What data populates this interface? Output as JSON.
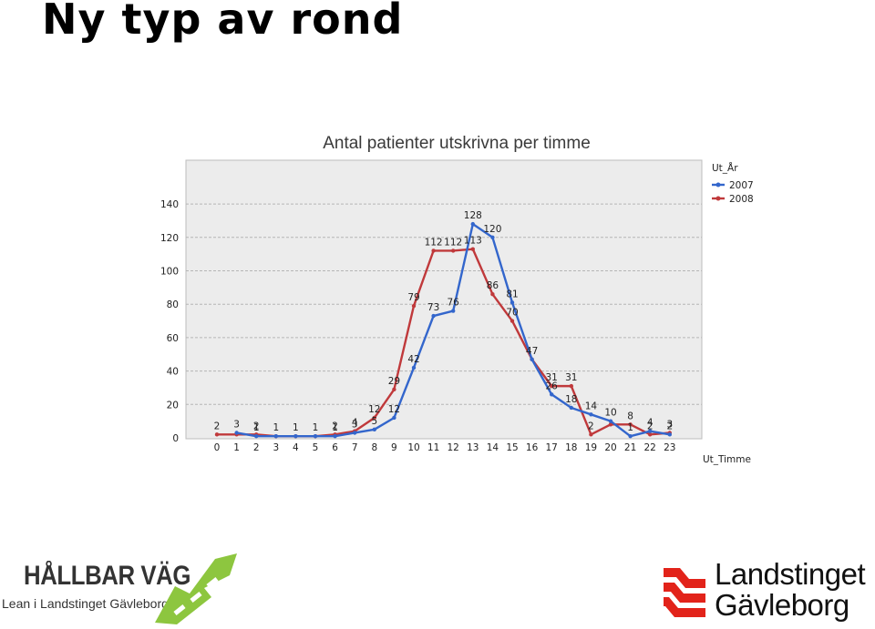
{
  "slide": {
    "title": "Ny typ av rond"
  },
  "chart_data": {
    "type": "line",
    "title": "Antal patienter utskrivna per timme",
    "xlabel": "Ut_Timme",
    "ylabel": "",
    "legend_title": "Ut_År",
    "legend_position": "right",
    "grid": true,
    "ylim": [
      0,
      140
    ],
    "yticks": [
      0,
      20,
      40,
      60,
      80,
      100,
      120,
      140
    ],
    "x": [
      0,
      1,
      2,
      3,
      4,
      5,
      6,
      7,
      8,
      9,
      10,
      11,
      12,
      13,
      14,
      15,
      16,
      17,
      18,
      19,
      20,
      21,
      22,
      23
    ],
    "series": [
      {
        "name": "2007",
        "color": "#3366cc",
        "values": [
          null,
          3,
          1,
          1,
          1,
          1,
          1,
          3,
          5,
          12,
          42,
          73,
          76,
          128,
          120,
          81,
          47,
          26,
          18,
          14,
          10,
          1,
          4,
          2
        ]
      },
      {
        "name": "2008",
        "color": "#c0393b",
        "values": [
          2,
          2,
          2,
          1,
          1,
          1,
          2,
          4,
          12,
          29,
          79,
          112,
          112,
          113,
          86,
          70,
          47,
          31,
          31,
          2,
          8,
          8,
          2,
          3
        ]
      }
    ],
    "data_labels": [
      {
        "x": 0,
        "text": "2",
        "series": "2008"
      },
      {
        "x": 1,
        "text": "3",
        "series": "2007"
      },
      {
        "x": 2,
        "text": "2",
        "series": "2008"
      },
      {
        "x": 2,
        "text": "1",
        "series": "2007"
      },
      {
        "x": 3,
        "text": "1",
        "series": "2007"
      },
      {
        "x": 4,
        "text": "1",
        "series": "2007"
      },
      {
        "x": 5,
        "text": "1",
        "series": "2007"
      },
      {
        "x": 6,
        "text": "2",
        "series": "2008"
      },
      {
        "x": 6,
        "text": "1",
        "series": "2007"
      },
      {
        "x": 7,
        "text": "3",
        "series": "2007"
      },
      {
        "x": 7,
        "text": "4",
        "series": "2008"
      },
      {
        "x": 8,
        "text": "12",
        "series": "2008"
      },
      {
        "x": 8,
        "text": "5",
        "series": "2007"
      },
      {
        "x": 9,
        "text": "29",
        "series": "2008"
      },
      {
        "x": 9,
        "text": "12",
        "series": "2007"
      },
      {
        "x": 10,
        "text": "79",
        "series": "2008"
      },
      {
        "x": 10,
        "text": "42",
        "series": "2007"
      },
      {
        "x": 11,
        "text": "112",
        "series": "2008"
      },
      {
        "x": 11,
        "text": "73",
        "series": "2007"
      },
      {
        "x": 12,
        "text": "112",
        "series": "2008"
      },
      {
        "x": 12,
        "text": "76",
        "series": "2007"
      },
      {
        "x": 13,
        "text": "128",
        "series": "2007"
      },
      {
        "x": 13,
        "text": "113",
        "series": "2008"
      },
      {
        "x": 14,
        "text": "120",
        "series": "2007"
      },
      {
        "x": 14,
        "text": "86",
        "series": "2008"
      },
      {
        "x": 15,
        "text": "81",
        "series": "2007"
      },
      {
        "x": 15,
        "text": "70",
        "series": "2008"
      },
      {
        "x": 16,
        "text": "47",
        "series": "2008"
      },
      {
        "x": 17,
        "text": "31",
        "series": "2008"
      },
      {
        "x": 17,
        "text": "26",
        "series": "2007"
      },
      {
        "x": 18,
        "text": "31",
        "series": "2008"
      },
      {
        "x": 18,
        "text": "18",
        "series": "2007"
      },
      {
        "x": 19,
        "text": "14",
        "series": "2007"
      },
      {
        "x": 19,
        "text": "2",
        "series": "2008"
      },
      {
        "x": 20,
        "text": "10",
        "series": "2007"
      },
      {
        "x": 21,
        "text": "8",
        "series": "2008"
      },
      {
        "x": 21,
        "text": "1",
        "series": "2007"
      },
      {
        "x": 22,
        "text": "4",
        "series": "2007"
      },
      {
        "x": 22,
        "text": "2",
        "series": "2008"
      },
      {
        "x": 23,
        "text": "3",
        "series": "2008"
      },
      {
        "x": 23,
        "text": "2",
        "series": "2007"
      }
    ]
  },
  "logos": {
    "left": {
      "name": "HÅLLBAR VÄG",
      "tagline": "Lean i Landstinget Gävleborg",
      "icon": "road-arrow-icon",
      "color": "#8dc63f"
    },
    "right": {
      "line1": "Landstinget",
      "line2": "Gävleborg",
      "icon": "landstinget-stripes-icon",
      "color": "#e2231a"
    }
  }
}
